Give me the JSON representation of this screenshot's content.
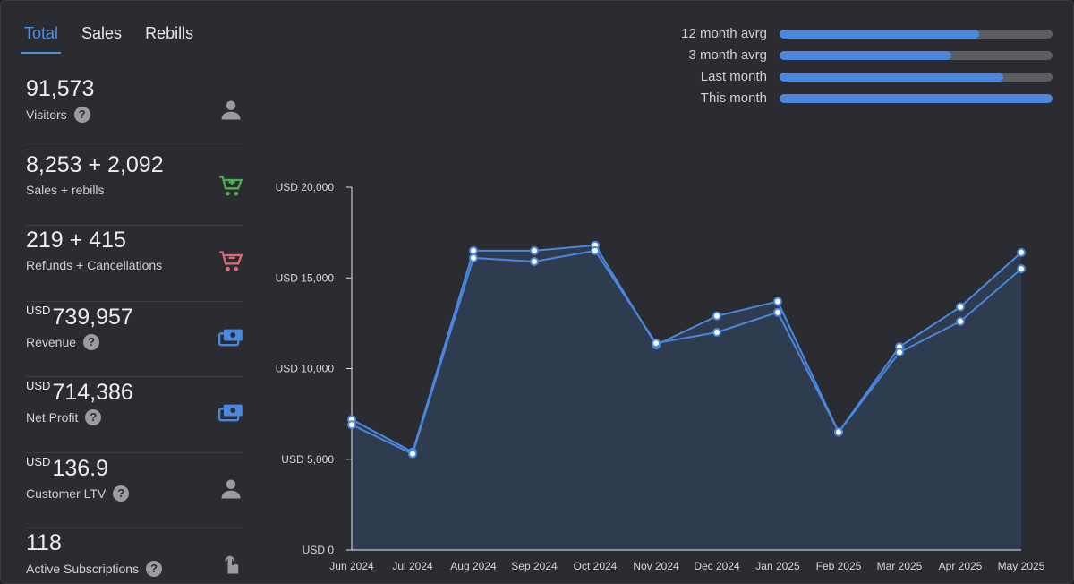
{
  "tabs": [
    {
      "label": "Total",
      "active": true
    },
    {
      "label": "Sales",
      "active": false
    },
    {
      "label": "Rebills",
      "active": false
    }
  ],
  "stats": [
    {
      "value": "91,573",
      "currency": "",
      "label": "Visitors",
      "help": true,
      "icon": "person-icon",
      "icon_color": "#9a9ca1"
    },
    {
      "value": "8,253 + 2,092",
      "currency": "",
      "label": "Sales + rebills",
      "help": false,
      "icon": "cart-add-icon",
      "icon_color": "#4caf50"
    },
    {
      "value": "219 + 415",
      "currency": "",
      "label": "Refunds + Cancellations",
      "help": false,
      "icon": "cart-remove-icon",
      "icon_color": "#e06a7a"
    },
    {
      "value": "739,957",
      "currency": "USD",
      "label": "Revenue",
      "help": true,
      "icon": "money-icon",
      "icon_color": "#4a87dd"
    },
    {
      "value": "714,386",
      "currency": "USD",
      "label": "Net Profit",
      "help": true,
      "icon": "money-icon",
      "icon_color": "#4a87dd"
    },
    {
      "value": "136.9",
      "currency": "USD",
      "label": "Customer LTV",
      "help": true,
      "icon": "person-icon",
      "icon_color": "#9a9ca1"
    },
    {
      "value": "118",
      "currency": "",
      "label": "Active Subscriptions",
      "help": true,
      "icon": "tap-icon",
      "icon_color": "#9a9ca1"
    }
  ],
  "help_glyph": "?",
  "averages": [
    {
      "label": "12 month avrg",
      "fill": 0.73
    },
    {
      "label": "3 month avrg",
      "fill": 0.63
    },
    {
      "label": "Last month",
      "fill": 0.82
    },
    {
      "label": "This month",
      "fill": 1.0
    }
  ],
  "colors": {
    "accent": "#4a87dd",
    "tab_active": "#4e8fe0",
    "area_fill": "#2f3d52"
  },
  "chart_data": {
    "type": "area",
    "categories": [
      "Jun 2024",
      "Jul 2024",
      "Aug 2024",
      "Sep 2024",
      "Oct 2024",
      "Nov 2024",
      "Dec 2024",
      "Jan 2025",
      "Feb 2025",
      "Mar 2025",
      "Apr 2025",
      "May 2025"
    ],
    "series": [
      {
        "values": [
          7200,
          5400,
          16500,
          16500,
          16800,
          11300,
          12900,
          13700,
          6500,
          11200,
          13400,
          16400
        ]
      },
      {
        "values": [
          6900,
          5300,
          16100,
          15900,
          16500,
          11400,
          12000,
          13100,
          6500,
          10900,
          12600,
          15500
        ]
      }
    ],
    "yticks": [
      "USD 0",
      "USD 5,000",
      "USD 10,000",
      "USD 15,000",
      "USD 20,000"
    ],
    "ylim": [
      0,
      20000
    ],
    "grid": false
  }
}
